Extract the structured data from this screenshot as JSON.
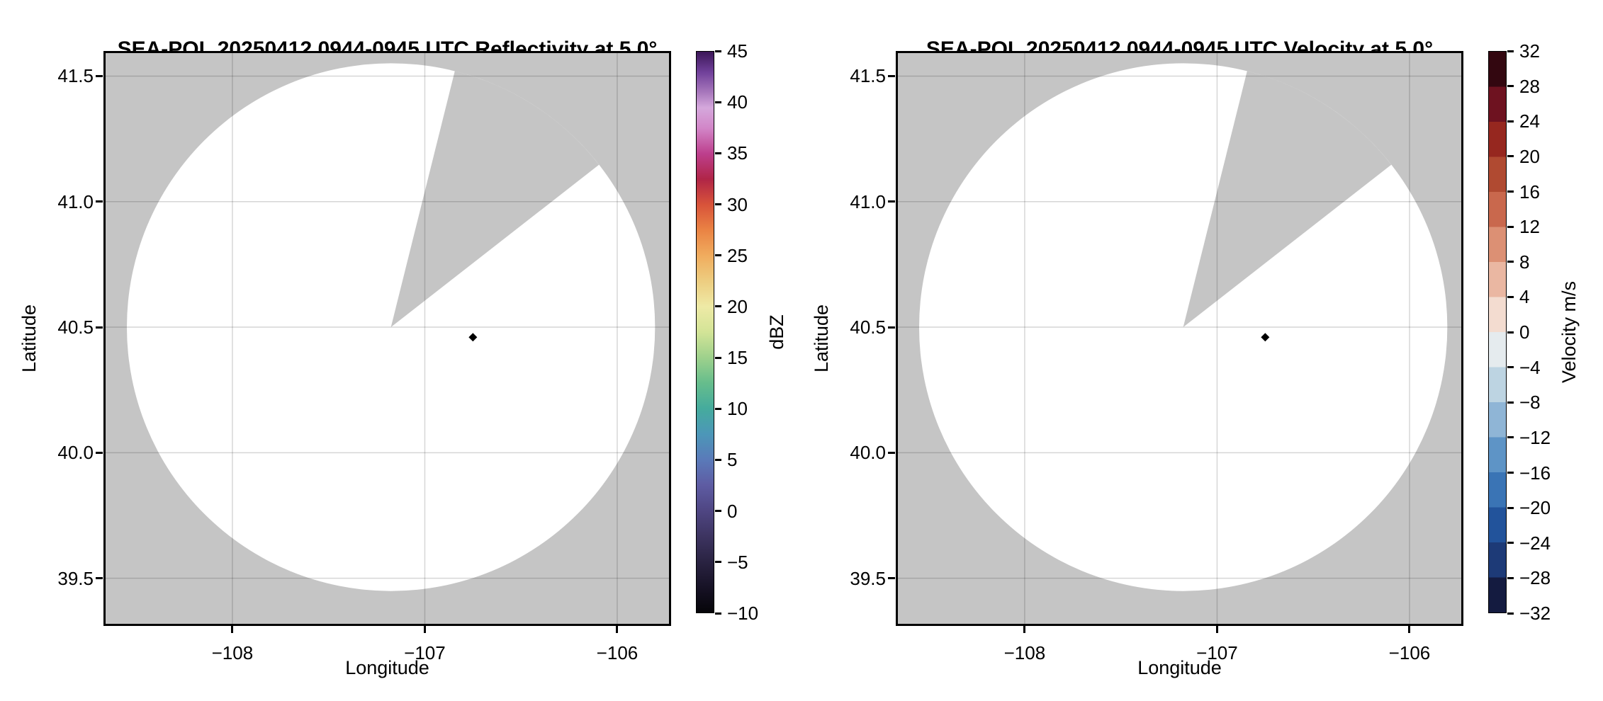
{
  "figure": {
    "background_color": "#ffffff",
    "plot_background_gray": "#c5c5c5",
    "scan_fill_color": "#ffffff",
    "gridline_color": "rgba(0,0,0,0.16)"
  },
  "chart_data": [
    {
      "type": "radar_ppi_map",
      "title": "SEA-POL 20250412 0944-0945 UTC Reflectivity at 5.0°",
      "radar_name": "SEA-POL",
      "date": "20250412",
      "time_utc": "0944-0945",
      "field": "Reflectivity",
      "elevation_deg": 5.0,
      "xlabel": "Longitude",
      "ylabel": "Latitude",
      "xlim": [
        -108.67,
        -105.72
      ],
      "ylim": [
        39.31,
        41.6
      ],
      "xticks": [
        -108,
        -107,
        -106
      ],
      "yticks": [
        41.5,
        41.0,
        40.5,
        40.0,
        39.5
      ],
      "grid": true,
      "radar_site": {
        "lon": -107.176,
        "lat": 40.5
      },
      "scan_radius_deg_lat": 1.051,
      "missing_sector_azimuth_deg": [
        14,
        52
      ],
      "marker": {
        "lon": -106.75,
        "lat": 40.46,
        "shape": "diamond",
        "color": "#000000"
      },
      "notes": "No echoes above -10 dBZ visible; scan area blank (white), gray sector 14-52 deg azimuth has no data",
      "colorbar": {
        "label": "dBZ",
        "vmin": -10,
        "vmax": 45,
        "ticks": [
          45,
          40,
          35,
          30,
          25,
          20,
          15,
          10,
          5,
          0,
          -5,
          -10
        ],
        "style": "smooth",
        "stops": [
          {
            "v": -10,
            "c": "#060509"
          },
          {
            "v": -7.5,
            "c": "#171226"
          },
          {
            "v": -5,
            "c": "#2a2342"
          },
          {
            "v": -2.5,
            "c": "#3d3461"
          },
          {
            "v": 0,
            "c": "#4f4683"
          },
          {
            "v": 2.5,
            "c": "#5e5ca3"
          },
          {
            "v": 5,
            "c": "#5a7ab9"
          },
          {
            "v": 7.5,
            "c": "#4c97b8"
          },
          {
            "v": 10,
            "c": "#45ab9d"
          },
          {
            "v": 12.5,
            "c": "#66bd8c"
          },
          {
            "v": 15,
            "c": "#9ed18c"
          },
          {
            "v": 17.5,
            "c": "#d3e497"
          },
          {
            "v": 20,
            "c": "#eeeaa6"
          },
          {
            "v": 22.5,
            "c": "#edcd80"
          },
          {
            "v": 25,
            "c": "#f0ac5e"
          },
          {
            "v": 27.5,
            "c": "#ea8344"
          },
          {
            "v": 30,
            "c": "#d8533a"
          },
          {
            "v": 32.5,
            "c": "#b02547"
          },
          {
            "v": 35,
            "c": "#bd3f8d"
          },
          {
            "v": 37.5,
            "c": "#d286c8"
          },
          {
            "v": 39.5,
            "c": "#d5a8dc"
          },
          {
            "v": 41,
            "c": "#a878bc"
          },
          {
            "v": 43,
            "c": "#70409a"
          },
          {
            "v": 45,
            "c": "#3c1758"
          }
        ]
      }
    },
    {
      "type": "radar_ppi_map",
      "title": "SEA-POL 20250412 0944-0945 UTC Velocity at 5.0°",
      "radar_name": "SEA-POL",
      "date": "20250412",
      "time_utc": "0944-0945",
      "field": "Velocity",
      "elevation_deg": 5.0,
      "xlabel": "Longitude",
      "ylabel": "Latitude",
      "xlim": [
        -108.67,
        -105.72
      ],
      "ylim": [
        39.31,
        41.6
      ],
      "xticks": [
        -108,
        -107,
        -106
      ],
      "yticks": [
        41.5,
        41.0,
        40.5,
        40.0,
        39.5
      ],
      "grid": true,
      "radar_site": {
        "lon": -107.176,
        "lat": 40.5
      },
      "scan_radius_deg_lat": 1.051,
      "missing_sector_azimuth_deg": [
        14,
        52
      ],
      "marker": {
        "lon": -106.75,
        "lat": 40.46,
        "shape": "diamond",
        "color": "#000000"
      },
      "notes": "No velocity data visible; scan area blank (white), gray sector 14-52 deg azimuth has no data",
      "colorbar": {
        "label": "Velocity m/s",
        "vmin": -32,
        "vmax": 32,
        "ticks": [
          32,
          28,
          24,
          20,
          16,
          12,
          8,
          4,
          0,
          -4,
          -8,
          -12,
          -16,
          -20,
          -24,
          -28,
          -32
        ],
        "style": "steps",
        "stops": [
          {
            "v": -32,
            "c": "#141b40"
          },
          {
            "v": -28,
            "c": "#1d3a77"
          },
          {
            "v": -24,
            "c": "#22539b"
          },
          {
            "v": -20,
            "c": "#3a74b5"
          },
          {
            "v": -16,
            "c": "#5e94c6"
          },
          {
            "v": -12,
            "c": "#8fb5d6"
          },
          {
            "v": -8,
            "c": "#bdd4e2"
          },
          {
            "v": -4,
            "c": "#e5ebee"
          },
          {
            "v": 0,
            "c": "#f3dcd0"
          },
          {
            "v": 4,
            "c": "#eab7a2"
          },
          {
            "v": 8,
            "c": "#dc9074"
          },
          {
            "v": 12,
            "c": "#c9684d"
          },
          {
            "v": 16,
            "c": "#b04a31"
          },
          {
            "v": 20,
            "c": "#96271f"
          },
          {
            "v": 24,
            "c": "#6e1220"
          },
          {
            "v": 28,
            "c": "#330710"
          }
        ]
      }
    }
  ]
}
